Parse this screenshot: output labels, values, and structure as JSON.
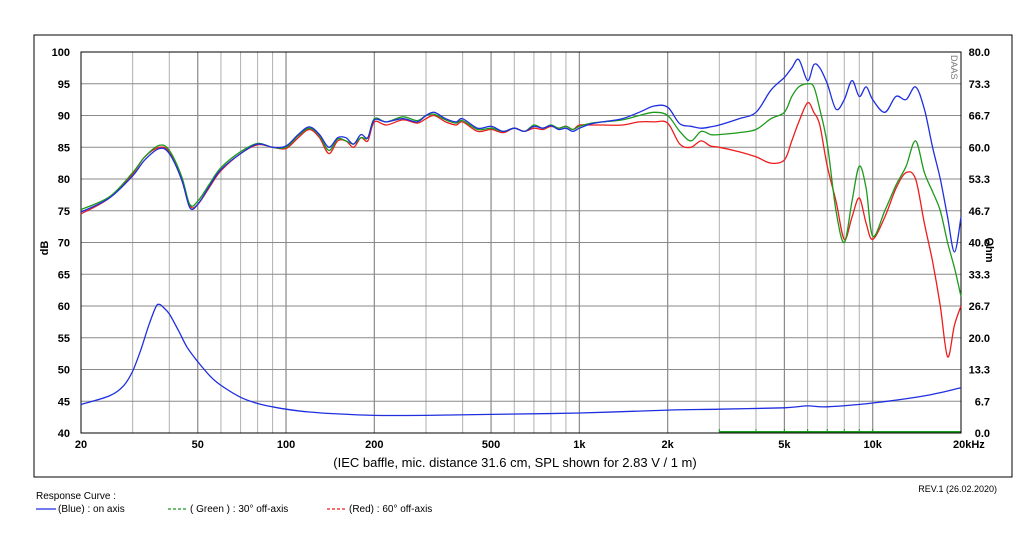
{
  "colors": {
    "blue": "#1f2fe0",
    "green": "#1c9a1c",
    "red": "#ee1c1c",
    "grid_major": "#8a8a8a",
    "grid_minor": "#b0b0b0"
  },
  "chart_data": {
    "type": "line",
    "x_scale": "log",
    "xlim": [
      20,
      20000
    ],
    "x_tick_labels": [
      "20",
      "50",
      "100",
      "200",
      "500",
      "1k",
      "2k",
      "5k",
      "10k",
      "20kHz"
    ],
    "x_tick_values": [
      20,
      50,
      100,
      200,
      500,
      1000,
      2000,
      5000,
      10000,
      20000
    ],
    "ylabel": "dB",
    "ylim": [
      40,
      100
    ],
    "y_ticks": [
      "100",
      "95",
      "90",
      "85",
      "80",
      "75",
      "70",
      "65",
      "60",
      "55",
      "50",
      "45",
      "40"
    ],
    "y2label": "Ohm",
    "y2lim": [
      0,
      80
    ],
    "y2_ticks": [
      "80.0",
      "73.3",
      "66.7",
      "60.0",
      "53.3",
      "46.7",
      "40.0",
      "33.3",
      "26.7",
      "20.0",
      "13.3",
      "6.7",
      "0.0"
    ],
    "caption": "(IEC baffle, mic. distance 31.6 cm, SPL shown for 2.83 V / 1 m)",
    "brand": "DAAS",
    "revision": "REV.1 (26.02.2020)",
    "grid": true,
    "legend_title": "Response Curve :",
    "legend_placement": "bottom-left",
    "series": [
      {
        "name": "(Blue)  : on axis",
        "color": "blue",
        "dash": "",
        "x": [
          20,
          25,
          30,
          33,
          37,
          40,
          44,
          47,
          50,
          55,
          60,
          70,
          80,
          90,
          100,
          110,
          120,
          130,
          140,
          150,
          160,
          170,
          180,
          190,
          200,
          220,
          250,
          280,
          300,
          320,
          350,
          380,
          400,
          450,
          500,
          550,
          600,
          650,
          700,
          750,
          800,
          850,
          900,
          950,
          1000,
          1100,
          1200,
          1400,
          1600,
          1800,
          2000,
          2200,
          2400,
          2600,
          2800,
          3000,
          3500,
          4000,
          4500,
          5000,
          5300,
          5600,
          6000,
          6300,
          6600,
          7000,
          7500,
          8000,
          8500,
          9000,
          9500,
          10000,
          11000,
          12000,
          13000,
          14000,
          15000,
          16000,
          17000,
          18000,
          19000,
          20000
        ],
        "y": [
          74.8,
          77.0,
          80.5,
          83.0,
          84.8,
          84.0,
          80.0,
          75.5,
          76.0,
          79.0,
          81.5,
          84.0,
          85.5,
          85.0,
          85.2,
          87.0,
          88.2,
          87.0,
          85.0,
          86.5,
          86.5,
          85.5,
          87.0,
          86.5,
          89.3,
          89.0,
          89.5,
          89.0,
          90.0,
          90.5,
          89.5,
          89.0,
          89.5,
          88.0,
          88.3,
          87.5,
          88.0,
          87.5,
          88.3,
          88.0,
          88.4,
          87.8,
          88.0,
          87.5,
          88.0,
          88.7,
          89.0,
          89.5,
          90.5,
          91.5,
          91.3,
          88.7,
          88.3,
          88.0,
          88.2,
          88.5,
          89.5,
          90.5,
          94.0,
          96.0,
          97.5,
          98.8,
          95.5,
          98.0,
          97.5,
          95.0,
          91.0,
          92.5,
          95.5,
          93.0,
          94.5,
          92.5,
          90.5,
          93.0,
          92.5,
          94.5,
          91.0,
          85.0,
          80.0,
          74.0,
          68.5,
          74.0
        ]
      },
      {
        "name": "( Green ) : 30° off-axis",
        "color": "green",
        "dash": "3 2",
        "x": [
          20,
          25,
          30,
          33,
          37,
          40,
          44,
          47,
          50,
          55,
          60,
          70,
          80,
          90,
          100,
          110,
          120,
          130,
          140,
          150,
          160,
          170,
          180,
          190,
          200,
          220,
          250,
          280,
          300,
          320,
          350,
          380,
          400,
          450,
          500,
          550,
          600,
          650,
          700,
          750,
          800,
          850,
          900,
          950,
          1000,
          1100,
          1200,
          1400,
          1600,
          1800,
          2000,
          2200,
          2400,
          2600,
          2800,
          3000,
          3500,
          4000,
          4500,
          5000,
          5300,
          5600,
          6000,
          6300,
          6600,
          7000,
          7500,
          8000,
          8500,
          9000,
          9500,
          10000,
          11000,
          12000,
          13000,
          14000,
          15000,
          16000,
          17000,
          18000,
          19000,
          20000
        ],
        "y": [
          75.2,
          77.2,
          81.0,
          83.5,
          85.3,
          84.5,
          80.5,
          76.0,
          76.5,
          79.3,
          81.8,
          84.3,
          85.6,
          85.0,
          85.0,
          86.8,
          88.0,
          86.8,
          84.5,
          86.3,
          86.0,
          85.5,
          86.5,
          86.5,
          89.5,
          89.0,
          89.8,
          89.2,
          90.0,
          90.2,
          89.3,
          88.8,
          89.2,
          87.8,
          88.0,
          87.5,
          88.0,
          87.5,
          88.5,
          88.0,
          88.5,
          88.0,
          88.3,
          87.8,
          88.3,
          88.8,
          89.0,
          89.3,
          90.0,
          90.5,
          90.0,
          87.5,
          86.0,
          87.5,
          87.0,
          87.0,
          87.3,
          87.8,
          89.5,
          90.5,
          93.0,
          94.5,
          95.0,
          94.5,
          91.0,
          85.5,
          75.0,
          70.0,
          76.5,
          82.0,
          78.5,
          71.0,
          75.0,
          79.0,
          82.0,
          86.0,
          81.0,
          78.0,
          75.0,
          70.0,
          66.0,
          61.5
        ]
      },
      {
        "name": "(Red) : 60° off-axis",
        "color": "red",
        "dash": "3 2",
        "x": [
          20,
          25,
          30,
          33,
          37,
          40,
          44,
          47,
          50,
          55,
          60,
          70,
          80,
          90,
          100,
          110,
          120,
          130,
          140,
          150,
          160,
          170,
          180,
          190,
          200,
          220,
          250,
          280,
          300,
          320,
          350,
          380,
          400,
          450,
          500,
          550,
          600,
          650,
          700,
          750,
          800,
          850,
          900,
          950,
          1000,
          1100,
          1200,
          1400,
          1600,
          1800,
          2000,
          2200,
          2400,
          2600,
          2800,
          3000,
          3500,
          4000,
          4500,
          5000,
          5300,
          5600,
          6000,
          6300,
          6600,
          7000,
          7500,
          8000,
          8500,
          9000,
          9500,
          10000,
          11000,
          12000,
          13000,
          14000,
          15000,
          16000,
          17000,
          18000,
          19000,
          20000
        ],
        "y": [
          74.5,
          77.0,
          80.8,
          83.5,
          85.0,
          84.2,
          80.0,
          75.8,
          76.0,
          78.8,
          81.3,
          84.0,
          85.4,
          85.0,
          84.8,
          86.5,
          87.8,
          86.5,
          84.0,
          86.0,
          86.0,
          85.0,
          86.5,
          86.0,
          89.0,
          88.5,
          89.3,
          88.8,
          89.5,
          90.0,
          89.0,
          88.5,
          89.0,
          87.5,
          87.8,
          87.3,
          88.0,
          87.5,
          88.0,
          87.8,
          88.3,
          88.0,
          88.3,
          87.8,
          88.5,
          88.5,
          88.5,
          88.5,
          89.0,
          89.0,
          88.8,
          85.5,
          85.0,
          86.0,
          85.2,
          85.0,
          84.3,
          83.5,
          82.5,
          83.0,
          86.0,
          89.0,
          92.0,
          90.5,
          88.5,
          82.0,
          76.5,
          70.5,
          74.0,
          77.0,
          73.0,
          70.5,
          74.0,
          78.5,
          81.0,
          80.0,
          73.0,
          67.0,
          60.0,
          52.0,
          57.0,
          60.0
        ]
      },
      {
        "name": "",
        "color": "blue",
        "dash": "",
        "axis": "right",
        "x": [
          20,
          25,
          28,
          30,
          32,
          34,
          36,
          37,
          38,
          40,
          43,
          46,
          50,
          55,
          60,
          70,
          80,
          90,
          100,
          120,
          150,
          200,
          300,
          500,
          1000,
          2000,
          3000,
          5000,
          6000,
          7000,
          10000,
          15000,
          20000
        ],
        "y": [
          6.0,
          7.8,
          10.0,
          13.0,
          17.5,
          22.5,
          26.5,
          27.0,
          26.5,
          25.0,
          21.5,
          18.0,
          15.0,
          12.0,
          10.0,
          7.5,
          6.2,
          5.5,
          5.0,
          4.4,
          4.0,
          3.7,
          3.7,
          3.9,
          4.2,
          4.8,
          5.0,
          5.3,
          5.7,
          5.5,
          6.3,
          7.8,
          9.5
        ]
      }
    ]
  }
}
